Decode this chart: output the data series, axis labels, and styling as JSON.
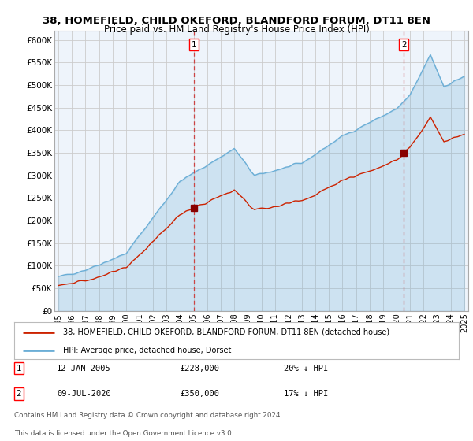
{
  "title": "38, HOMEFIELD, CHILD OKEFORD, BLANDFORD FORUM, DT11 8EN",
  "subtitle": "Price paid vs. HM Land Registry's House Price Index (HPI)",
  "ylim": [
    0,
    620000
  ],
  "yticks": [
    0,
    50000,
    100000,
    150000,
    200000,
    250000,
    300000,
    350000,
    400000,
    450000,
    500000,
    550000,
    600000
  ],
  "ytick_labels": [
    "£0",
    "£50K",
    "£100K",
    "£150K",
    "£200K",
    "£250K",
    "£300K",
    "£350K",
    "£400K",
    "£450K",
    "£500K",
    "£550K",
    "£600K"
  ],
  "hpi_color": "#a8c8e8",
  "hpi_line_color": "#6baed6",
  "price_color": "#cc2200",
  "vline_color": "#cc4444",
  "marker_dot_color": "#880000",
  "t1_year": 2005.04,
  "t2_year": 2020.54,
  "t1_price": 228000,
  "t2_price": 350000,
  "annotation1_date": "12-JAN-2005",
  "annotation1_price": "£228,000",
  "annotation1_pct": "20% ↓ HPI",
  "annotation2_date": "09-JUL-2020",
  "annotation2_price": "£350,000",
  "annotation2_pct": "17% ↓ HPI",
  "legend_line1": "38, HOMEFIELD, CHILD OKEFORD, BLANDFORD FORUM, DT11 8EN (detached house)",
  "legend_line2": "HPI: Average price, detached house, Dorset",
  "footer1": "Contains HM Land Registry data © Crown copyright and database right 2024.",
  "footer2": "This data is licensed under the Open Government Licence v3.0.",
  "background_color": "#ffffff",
  "grid_color": "#cccccc",
  "fill_alpha": 0.25,
  "xlim_left": 1994.7,
  "xlim_right": 2025.3
}
